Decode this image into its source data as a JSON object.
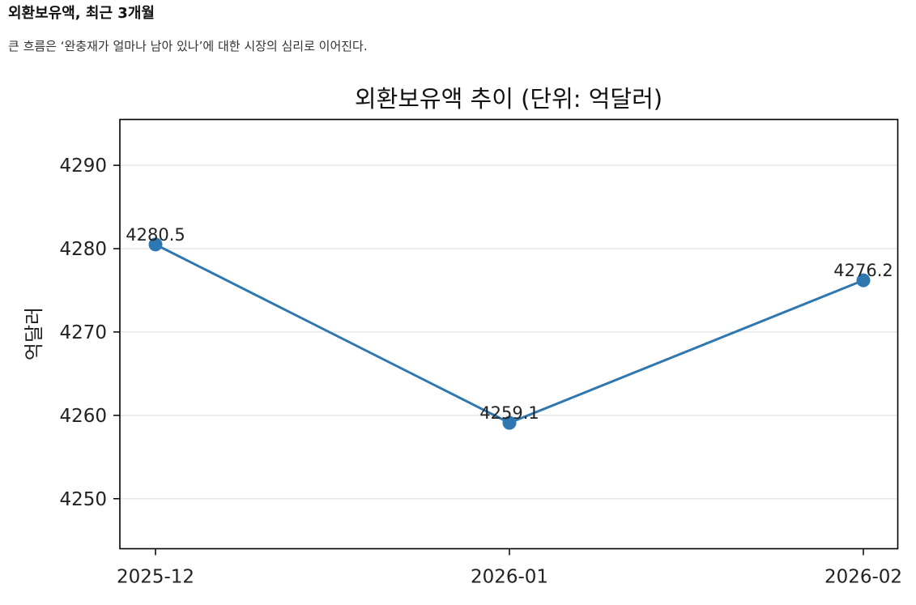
{
  "header": {
    "title": "외환보유액, 최근 3개월",
    "description": "큰 흐름은 ‘완충재가 얼마나 남아 있나’에 대한 시장의 심리로 이어진다."
  },
  "chart_data": {
    "type": "line",
    "title": "외환보유액 추이 (단위: 억달러)",
    "xlabel": "",
    "ylabel": "억달러",
    "categories": [
      "2025-12",
      "2026-01",
      "2026-02"
    ],
    "series": [
      {
        "values": [
          4280.5,
          4259.1,
          4276.2
        ],
        "labels": [
          "4280.5",
          "4259.1",
          "4276.2"
        ]
      }
    ],
    "ylim": [
      4244,
      4295.5
    ],
    "yticks": [
      4250,
      4260,
      4270,
      4280,
      4290
    ],
    "grid": "horizontal",
    "legend": "none",
    "colors": {
      "line": "#2e77b0",
      "marker": "#2e77b0",
      "grid": "#e6e6e6",
      "axes": "#000000"
    }
  }
}
